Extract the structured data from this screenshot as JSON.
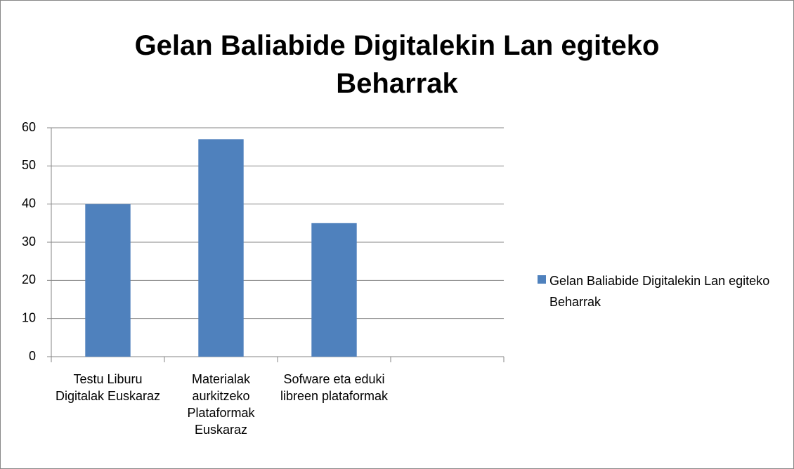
{
  "chart_data": {
    "type": "bar",
    "title": "Gelan Baliabide Digitalekin Lan egiteko Beharrak",
    "categories": [
      "Testu Liburu Digitalak Euskaraz",
      "Materialak aurkitzeko Plataformak Euskaraz",
      "Sofware eta eduki libreen plataformak",
      null
    ],
    "series": [
      {
        "name": "Gelan Baliabide Digitalekin Lan egiteko Beharrak",
        "color": "#4f81bd",
        "values": [
          40,
          57,
          35,
          null
        ]
      }
    ],
    "ylim": [
      0,
      60
    ],
    "yticks": [
      0,
      10,
      20,
      30,
      40,
      50,
      60
    ],
    "grid": true,
    "legend": "right"
  }
}
